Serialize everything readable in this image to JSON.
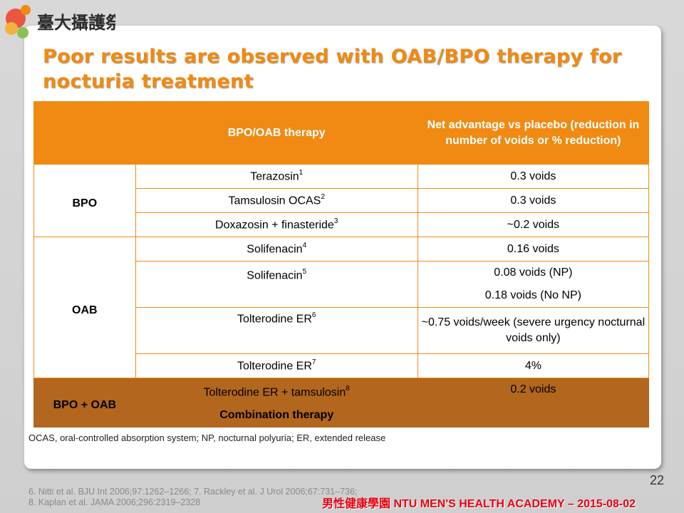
{
  "title": "Poor results are observed with OAB/BPO therapy for nocturia treatment",
  "table": {
    "headers": [
      "",
      "BPO/OAB therapy",
      "Net advantage vs placebo (reduction in number of voids or % reduction)"
    ],
    "groups": {
      "bpo": "BPO",
      "oab": "OAB",
      "combo": "BPO + OAB"
    },
    "rows": [
      {
        "therapy": "Terazosin",
        "ref": "1",
        "value": "0.3 voids"
      },
      {
        "therapy": "Tamsulosin OCAS",
        "ref": "2",
        "value": "0.3 voids"
      },
      {
        "therapy": "Doxazosin + finasteride",
        "ref": "3",
        "value": "~0.2 voids"
      },
      {
        "therapy": "Solifenacin",
        "ref": "4",
        "value": "0.16 voids"
      },
      {
        "therapy": "Solifenacin",
        "ref": "5",
        "value": "0.08 voids (NP)",
        "value2": "0.18 voids (No NP)"
      },
      {
        "therapy": "Tolterodine ER",
        "ref": "6",
        "value": "~0.75 voids/week (severe urgency nocturnal voids only)"
      },
      {
        "therapy": "Tolterodine ER",
        "ref": "7",
        "value": "4%"
      },
      {
        "therapy": "Tolterodine ER + tamsulosin",
        "ref": "8",
        "value": "0.2 voids",
        "sub": "Combination therapy"
      }
    ]
  },
  "footnote": "OCAS, oral-controlled absorption system; NP, nocturnal polyuria; ER, extended release",
  "references": [
    "6. Nitti et al. BJU Int 2006;97:1262–1266; 7. Rackley et al. J Urol 2006;67:731–736;",
    "8. Kaplan et al. JAMA 2006;296:2319–2328"
  ],
  "page_number": "22",
  "banner": "男性健康學園 NTU MEN'S HEALTH ACADEMY – 2015-08-02",
  "logo_text": "臺大攝護祭",
  "colors": {
    "accent": "#f08a12",
    "combo": "#b3661d",
    "banner": "#e60012"
  }
}
